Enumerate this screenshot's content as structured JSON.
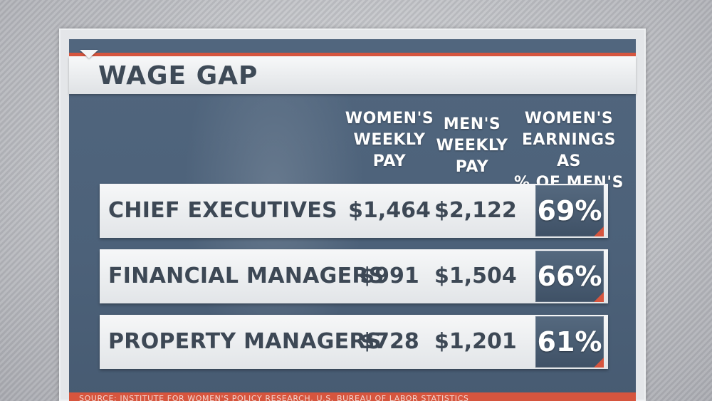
{
  "graphic": {
    "title": "WAGE GAP",
    "columns": {
      "women": "WOMEN'S\nWEEKLY\nPAY",
      "men": "MEN'S\nWEEKLY\nPAY",
      "pct": "WOMEN'S\nEARNINGS AS\n% OF MEN'S"
    },
    "rows": [
      {
        "occupation": "CHIEF EXECUTIVES",
        "women": "$1,464",
        "men": "$2,122",
        "pct": "69%"
      },
      {
        "occupation": "FINANCIAL MANAGERS",
        "women": "$991",
        "men": "$1,504",
        "pct": "66%"
      },
      {
        "occupation": "PROPERTY MANAGERS",
        "women": "$728",
        "men": "$1,201",
        "pct": "61%"
      }
    ],
    "source": "SOURCE: INSTITUTE FOR WOMEN'S POLICY RESEARCH, U.S. BUREAU OF LABOR STATISTICS"
  },
  "colors": {
    "accent": "#d6553e",
    "panel": "#4c6179",
    "text_dark": "#3d4855"
  }
}
